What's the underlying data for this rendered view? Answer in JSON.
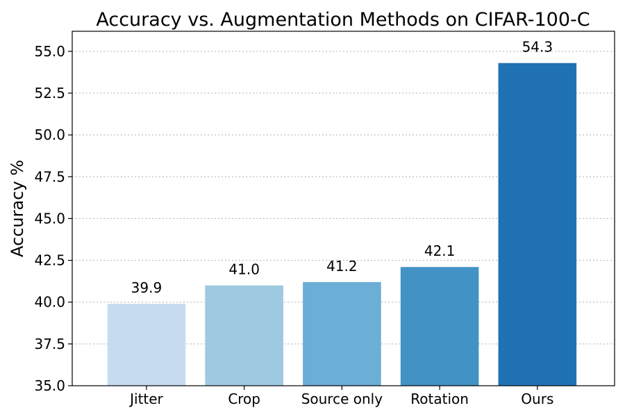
{
  "chart_data": {
    "type": "bar",
    "title": "Accuracy vs. Augmentation Methods on CIFAR-100-C",
    "xlabel": "",
    "ylabel": "Accuracy %",
    "categories": [
      "Jitter",
      "Crop",
      "Source only",
      "Rotation",
      "Ours"
    ],
    "values": [
      39.9,
      41.0,
      41.2,
      42.1,
      54.3
    ],
    "value_labels": [
      "39.9",
      "41.0",
      "41.2",
      "42.1",
      "54.3"
    ],
    "ylim": [
      35.0,
      56.2
    ],
    "yticks": [
      35.0,
      37.5,
      40.0,
      42.5,
      45.0,
      47.5,
      50.0,
      52.5,
      55.0
    ],
    "ytick_labels": [
      "35.0",
      "37.5",
      "40.0",
      "42.5",
      "45.0",
      "47.5",
      "50.0",
      "52.5",
      "55.0"
    ],
    "grid": "horizontal-dotted",
    "colors": [
      "#c6dbef",
      "#9ecae1",
      "#6baed6",
      "#4292c6",
      "#2171b5"
    ]
  }
}
